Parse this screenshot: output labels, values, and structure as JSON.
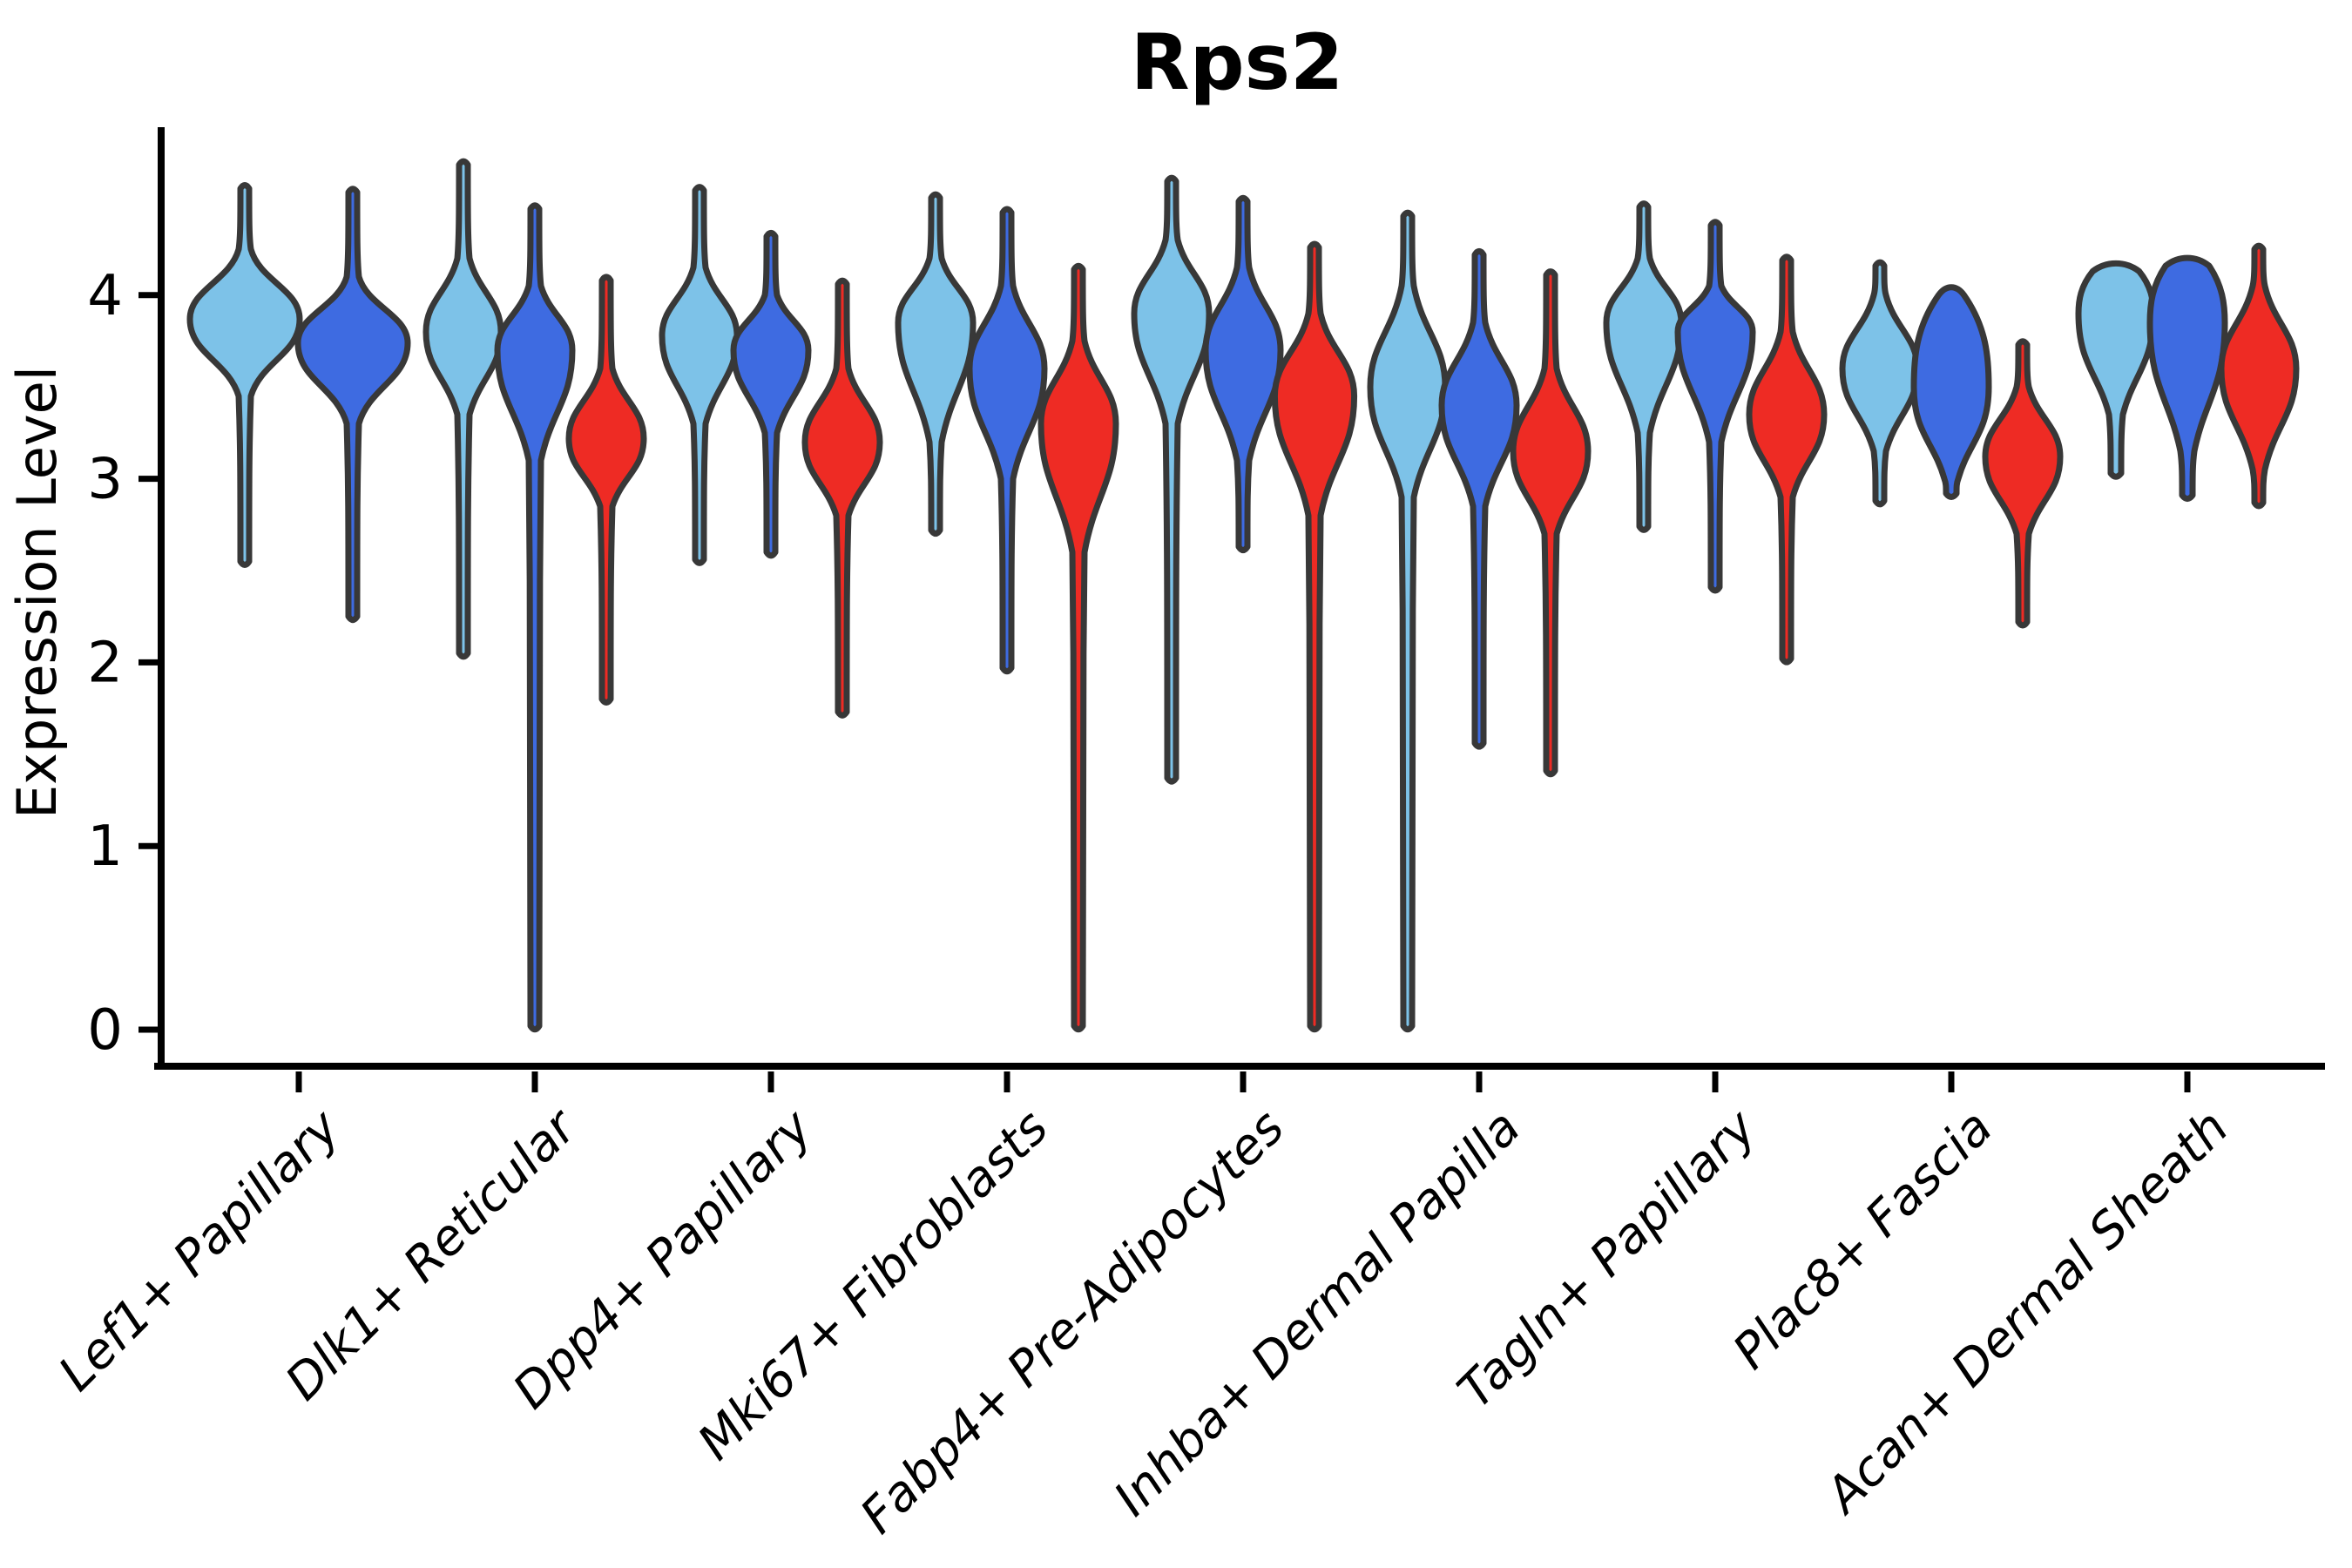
{
  "chart_data": {
    "type": "violin",
    "title": "Rps2",
    "ylabel": "Expression Level",
    "xlabel": "",
    "yticks": [
      0,
      1,
      2,
      3,
      4
    ],
    "ylim": [
      -0.2,
      4.87
    ],
    "grid": false,
    "legend": "none",
    "outline_color": "#383838",
    "split_colors": {
      "light_blue": "#7DC2E8",
      "dark_blue": "#3E6BE1",
      "red": "#EE2B24"
    },
    "categories": [
      "Lef1+ Papillary",
      "Dlk1+ Reticular",
      "Dpp4+ Papillary",
      "Mki67+ Fibroblasts",
      "Fabp4+ Pre-Adipocytes",
      "Inhba+ Dermal Papilla",
      "Tagln+ Papillary",
      "Plac8+ Fascia",
      "Acan+ Dermal Sheath"
    ],
    "groups": [
      {
        "category": "Lef1+ Papillary",
        "violins": [
          {
            "split": "light_blue",
            "max": 4.58,
            "upper": 4.25,
            "peak": 3.87,
            "lower": 3.45,
            "min": 2.55
          },
          {
            "split": "dark_blue",
            "max": 4.56,
            "upper": 4.1,
            "peak": 3.74,
            "lower": 3.3,
            "min": 2.25
          }
        ]
      },
      {
        "category": "Dlk1+ Reticular",
        "violins": [
          {
            "split": "light_blue",
            "max": 4.71,
            "upper": 4.2,
            "peak": 3.8,
            "lower": 3.35,
            "min": 2.05
          },
          {
            "split": "dark_blue",
            "max": 4.47,
            "upper": 4.05,
            "peak": 3.7,
            "lower": 3.1,
            "min": 0.02
          },
          {
            "split": "red",
            "max": 4.08,
            "upper": 3.6,
            "peak": 3.22,
            "lower": 2.85,
            "min": 1.8
          }
        ]
      },
      {
        "category": "Dpp4+ Papillary",
        "violins": [
          {
            "split": "light_blue",
            "max": 4.57,
            "upper": 4.15,
            "peak": 3.78,
            "lower": 3.3,
            "min": 2.56
          },
          {
            "split": "dark_blue",
            "max": 4.32,
            "upper": 4.0,
            "peak": 3.7,
            "lower": 3.25,
            "min": 2.6
          },
          {
            "split": "red",
            "max": 4.06,
            "upper": 3.6,
            "peak": 3.2,
            "lower": 2.8,
            "min": 1.73
          }
        ]
      },
      {
        "category": "Mki67+ Fibroblasts",
        "violins": [
          {
            "split": "light_blue",
            "max": 4.53,
            "upper": 4.2,
            "peak": 3.85,
            "lower": 3.2,
            "min": 2.72
          },
          {
            "split": "dark_blue",
            "max": 4.45,
            "upper": 4.05,
            "peak": 3.6,
            "lower": 3.0,
            "min": 1.97
          },
          {
            "split": "red",
            "max": 4.14,
            "upper": 3.75,
            "peak": 3.3,
            "lower": 2.6,
            "min": 0.02
          }
        ]
      },
      {
        "category": "Fabp4+ Pre-Adipocytes",
        "violins": [
          {
            "split": "light_blue",
            "max": 4.62,
            "upper": 4.3,
            "peak": 3.9,
            "lower": 3.3,
            "min": 1.37
          },
          {
            "split": "dark_blue",
            "max": 4.51,
            "upper": 4.15,
            "peak": 3.7,
            "lower": 3.1,
            "min": 2.63
          },
          {
            "split": "red",
            "max": 4.26,
            "upper": 3.9,
            "peak": 3.45,
            "lower": 2.8,
            "min": 0.02,
            "w": 1.06
          }
        ]
      },
      {
        "category": "Inhba+ Dermal Papilla",
        "violins": [
          {
            "split": "light_blue",
            "max": 4.43,
            "upper": 4.05,
            "peak": 3.5,
            "lower": 2.9,
            "min": 0.02
          },
          {
            "split": "dark_blue",
            "max": 4.22,
            "upper": 3.85,
            "peak": 3.4,
            "lower": 2.85,
            "min": 1.56
          },
          {
            "split": "red",
            "max": 4.11,
            "upper": 3.6,
            "peak": 3.15,
            "lower": 2.7,
            "min": 1.41
          }
        ]
      },
      {
        "category": "Tagln+ Papillary",
        "violins": [
          {
            "split": "light_blue",
            "max": 4.48,
            "upper": 4.2,
            "peak": 3.85,
            "lower": 3.25,
            "min": 2.74
          },
          {
            "split": "dark_blue",
            "max": 4.38,
            "upper": 4.05,
            "peak": 3.8,
            "lower": 3.2,
            "min": 2.41
          },
          {
            "split": "red",
            "max": 4.19,
            "upper": 3.8,
            "peak": 3.35,
            "lower": 2.9,
            "min": 2.02
          }
        ]
      },
      {
        "category": "Plac8+ Fascia",
        "violins": [
          {
            "split": "light_blue",
            "max": 4.16,
            "upper": 4.0,
            "peak": 3.6,
            "lower": 3.15,
            "min": 2.88
          },
          {
            "split": "dark_blue",
            "max": 4.0,
            "upper": 3.9,
            "peak": 3.5,
            "lower": 3.0,
            "min": 2.92,
            "top": "flat",
            "topw": 0.34
          },
          {
            "split": "red",
            "max": 3.73,
            "upper": 3.5,
            "peak": 3.12,
            "lower": 2.7,
            "min": 2.22
          }
        ]
      },
      {
        "category": "Acan+ Dermal Sheath",
        "violins": [
          {
            "split": "light_blue",
            "max": 4.13,
            "upper": 4.13,
            "peak": 3.9,
            "lower": 3.35,
            "min": 3.03,
            "top": "flat",
            "topw": 0.62
          },
          {
            "split": "dark_blue",
            "max": 4.16,
            "upper": 4.16,
            "peak": 3.85,
            "lower": 3.15,
            "min": 2.91,
            "top": "flat",
            "topw": 0.58
          },
          {
            "split": "red",
            "max": 4.25,
            "upper": 4.05,
            "peak": 3.6,
            "lower": 3.05,
            "min": 2.87
          }
        ]
      }
    ]
  }
}
